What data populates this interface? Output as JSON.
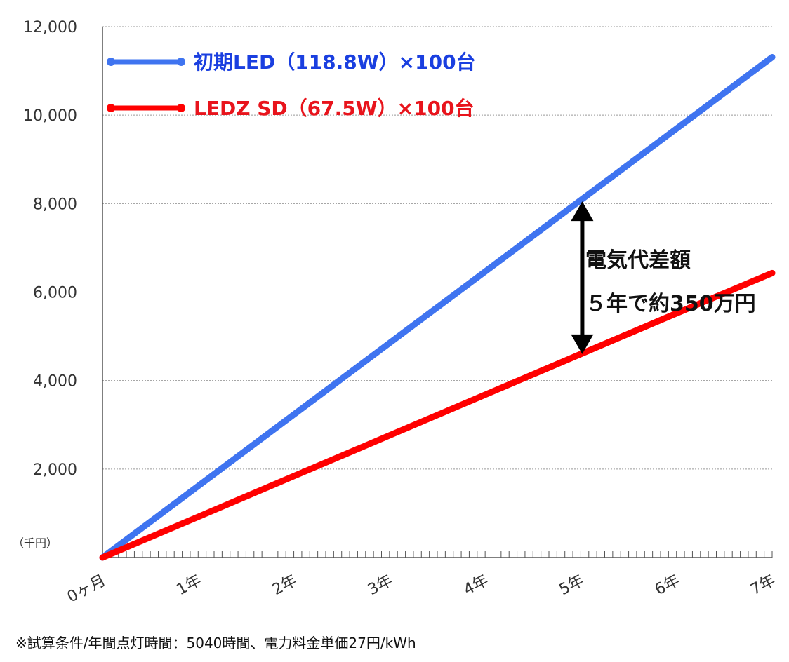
{
  "chart_data": {
    "type": "line",
    "ylabel_unit": "（千円）",
    "y_ticks": [
      "12,000",
      "10,000",
      "8,000",
      "6,000",
      "4,000",
      "2,000"
    ],
    "ylim": [
      0,
      12000
    ],
    "x_ticks": [
      "0ヶ月",
      "1年",
      "2年",
      "3年",
      "4年",
      "5年",
      "6年",
      "7年"
    ],
    "xlim": [
      0,
      7
    ],
    "grid": true,
    "legend_position": "top-left",
    "series": [
      {
        "name": "初期LED（118.8W）×100台",
        "color": "#3f74f0",
        "x": [
          0,
          7
        ],
        "y": [
          0,
          11310
        ]
      },
      {
        "name": "LEDZ SD（67.5W）×100台",
        "color": "#ff0000",
        "x": [
          0,
          1,
          2,
          3,
          4,
          5,
          6,
          7
        ],
        "y": [
          0,
          920,
          1840,
          2760,
          3680,
          4600,
          5520,
          6430
        ]
      }
    ],
    "annotation": {
      "line1": "電気代差額",
      "line2": "５年で約350万円",
      "x": 5,
      "y_top": 8050,
      "y_bottom": 4600
    }
  },
  "footnote": "※試算条件/年間点灯時間：5040時間、電力料金単価27円/kWh",
  "colors": {
    "grid": "#999999",
    "axis": "#555555",
    "arrow": "#000000"
  }
}
